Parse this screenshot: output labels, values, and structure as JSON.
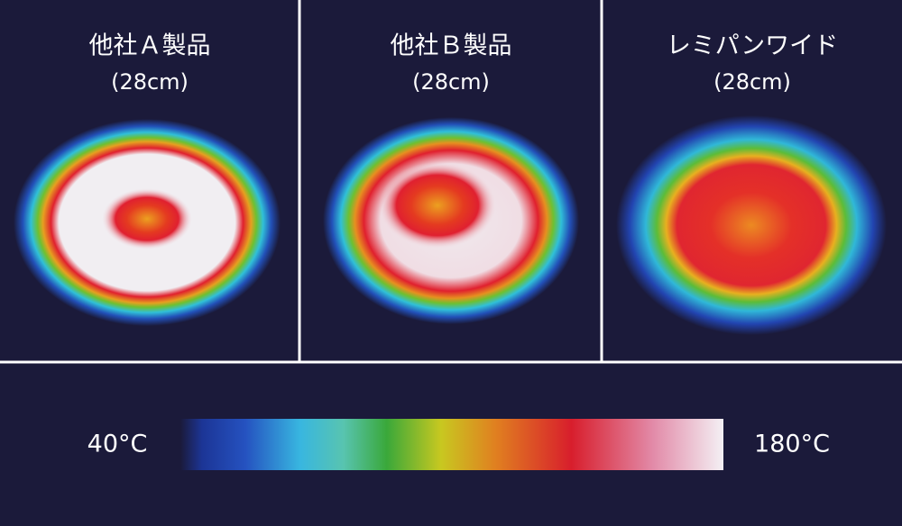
{
  "panels": [
    {
      "title": "他社Ａ製品",
      "subtitle": "(28cm)"
    },
    {
      "title": "他社Ｂ製品",
      "subtitle": "(28cm)"
    },
    {
      "title": "レミパンワイド",
      "subtitle": "(28cm)"
    }
  ],
  "legend": {
    "min_label": "40°C",
    "max_label": "180°C"
  }
}
